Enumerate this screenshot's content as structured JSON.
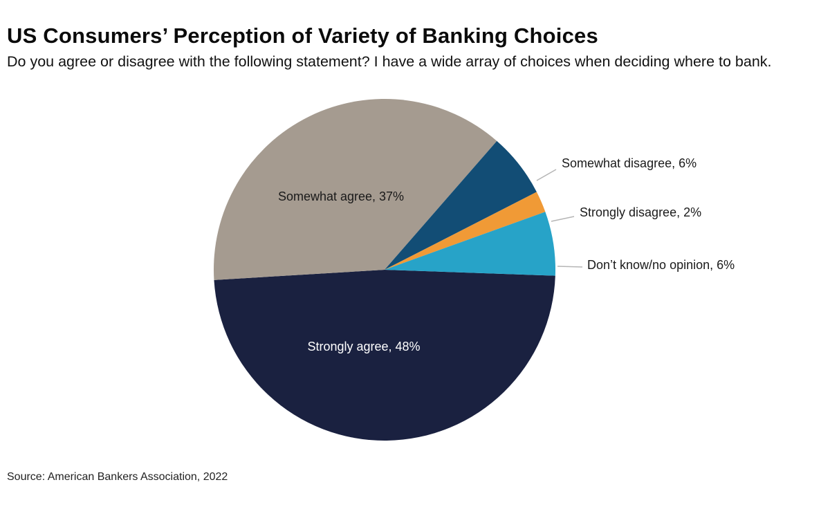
{
  "title": "US Consumers’ Perception of Variety of Banking Choices",
  "subtitle": "Do you agree or disagree with the following statement? I have a wide array of choices when deciding where to bank.",
  "source": "Source: American Bankers Association, 2022",
  "chart_data": {
    "type": "pie",
    "title": "US Consumers’ Perception of Variety of Banking Choices",
    "subtitle": "Do you agree or disagree with the following statement? I have a wide array of choices when deciding where to bank.",
    "slices": [
      {
        "label": "Strongly agree",
        "value": 48,
        "display": "Strongly agree, 48%",
        "color": "#1a2140",
        "label_color": "#ffffff",
        "label_position": "inside"
      },
      {
        "label": "Somewhat agree",
        "value": 37,
        "display": "Somewhat agree, 37%",
        "color": "#a59b90",
        "label_color": "#1a1a1a",
        "label_position": "inside"
      },
      {
        "label": "Somewhat disagree",
        "value": 6,
        "display": "Somewhat disagree, 6%",
        "color": "#124d75",
        "label_color": "#1a1a1a",
        "label_position": "outside"
      },
      {
        "label": "Strongly disagree",
        "value": 2,
        "display": "Strongly disagree, 2%",
        "color": "#f09a36",
        "label_color": "#1a1a1a",
        "label_position": "outside"
      },
      {
        "label": "Don’t know/no opinion",
        "value": 6,
        "display": "Don’t know/no opinion, 6%",
        "color": "#27a3c8",
        "label_color": "#1a1a1a",
        "label_position": "outside"
      }
    ],
    "legend": "none",
    "leader_line_color": "#b5b5b5"
  }
}
